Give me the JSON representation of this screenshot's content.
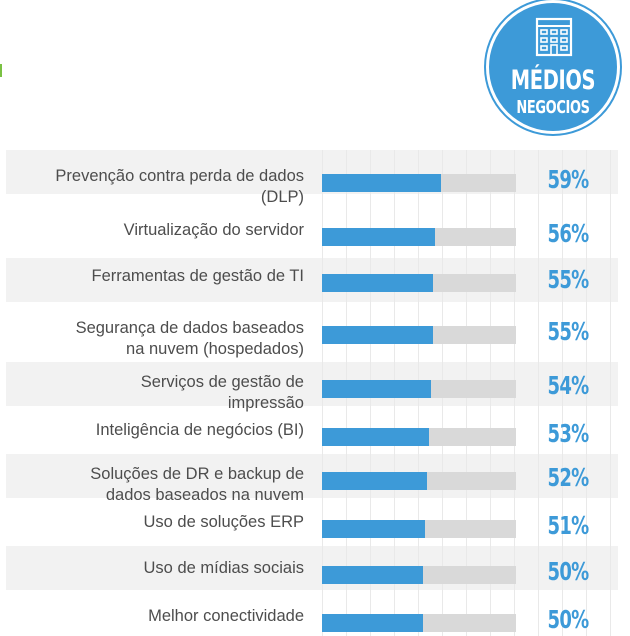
{
  "badge": {
    "line1": "MÉDIOS",
    "line2": "NEGOCIOS",
    "icon": "building-icon",
    "color": "#3d9ad8"
  },
  "colors": {
    "accent": "#3d9ad8",
    "track": "#d9d9d9",
    "band": "#f2f2f2",
    "text": "#4d4d4d",
    "mark": "#7ac143"
  },
  "chart_data": {
    "type": "bar",
    "orientation": "horizontal",
    "ylim": [
      0,
      100
    ],
    "categories": [
      [
        "Prevenção contra perda de dados",
        "(DLP)"
      ],
      [
        "Virtualização do servidor"
      ],
      [
        "Ferramentas de gestão de TI"
      ],
      [
        "Segurança de dados baseados",
        "na nuvem (hospedados)"
      ],
      [
        "Serviços de gestão de",
        "impressão"
      ],
      [
        "Inteligência de negócios (BI)"
      ],
      [
        "Soluções de DR e backup de",
        "dados baseados na nuvem"
      ],
      [
        "Uso de soluções ERP"
      ],
      [
        "Uso de mídias sociais"
      ],
      [
        "Melhor conectividade"
      ]
    ],
    "values": [
      59,
      56,
      55,
      55,
      54,
      53,
      52,
      51,
      50,
      50
    ],
    "labels": [
      "59%",
      "56%",
      "55%",
      "55%",
      "54%",
      "53%",
      "52%",
      "51%",
      "50%",
      "50%"
    ]
  }
}
